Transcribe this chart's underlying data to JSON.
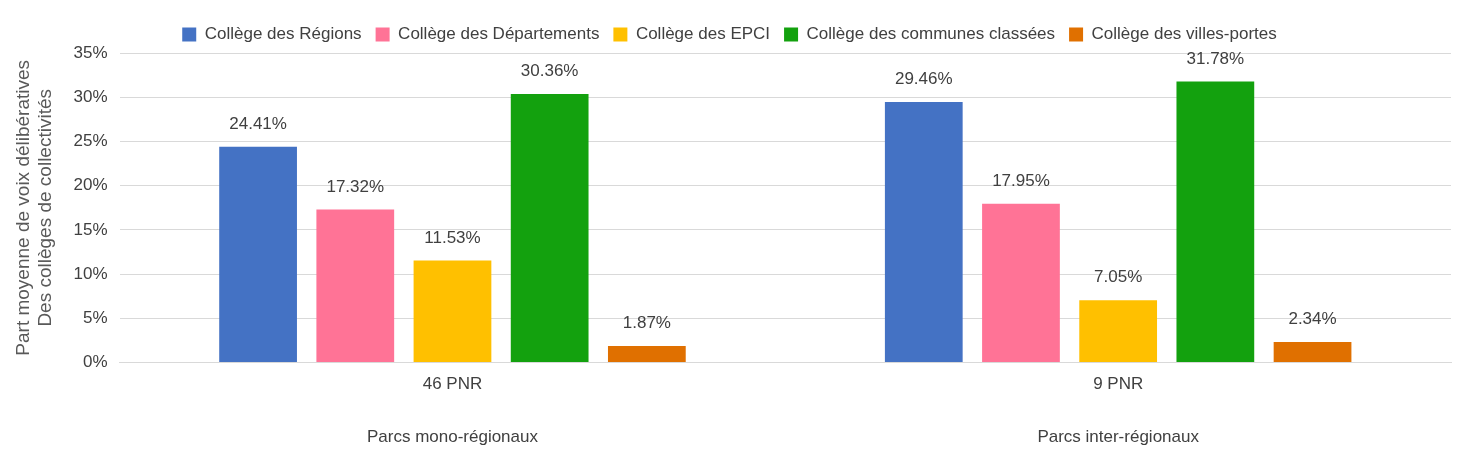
{
  "chart_data": {
    "type": "bar",
    "ylabel": "Part moyenne de voix délibératives\nDes collèges de collectivités",
    "categories": [
      "46 PNR",
      "9 PNR"
    ],
    "series": [
      {
        "name": "Collège des Régions",
        "color": "#4472c4",
        "values": [
          24.41,
          29.46
        ],
        "value_labels": [
          "24.41%",
          "29.46%"
        ]
      },
      {
        "name": "Collège des Départements",
        "color": "#ff7396",
        "values": [
          17.32,
          17.95
        ],
        "value_labels": [
          "17.32%",
          "17.95%"
        ]
      },
      {
        "name": "Collège des EPCI",
        "color": "#ffc000",
        "values": [
          11.53,
          7.05
        ],
        "value_labels": [
          "11.53%",
          "7.05%"
        ]
      },
      {
        "name": "Collège des communes classées",
        "color": "#13a10e",
        "values": [
          30.36,
          31.78
        ],
        "value_labels": [
          "30.36%",
          "31.78%"
        ]
      },
      {
        "name": "Collège des villes-portes",
        "color": "#e07000",
        "values": [
          1.87,
          2.34
        ],
        "value_labels": [
          "1.87%",
          "2.34%"
        ]
      }
    ],
    "annotations": [
      "Parcs mono-régionaux",
      "Parcs inter-régionaux"
    ],
    "ylim": [
      0,
      35
    ],
    "yticks": [
      {
        "value": 0,
        "label": "0%"
      },
      {
        "value": 5,
        "label": "5%"
      },
      {
        "value": 10,
        "label": "10%"
      },
      {
        "value": 15,
        "label": "15%"
      },
      {
        "value": 20,
        "label": "20%"
      },
      {
        "value": 25,
        "label": "25%"
      },
      {
        "value": 30,
        "label": "30%"
      },
      {
        "value": 35,
        "label": "35%"
      }
    ],
    "grid": "y",
    "legend": "top"
  }
}
